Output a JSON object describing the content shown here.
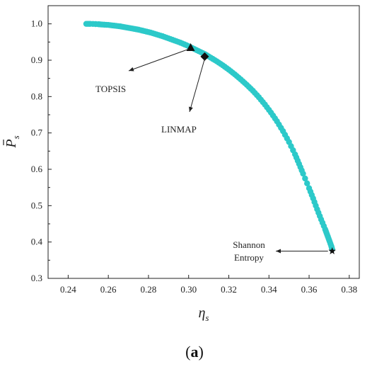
{
  "chart_data": {
    "type": "scatter",
    "xlabel": "η",
    "xlabel_sub": "s",
    "ylabel": "P",
    "ylabel_sub": "s",
    "xlim": [
      0.23,
      0.385
    ],
    "ylim": [
      0.3,
      1.05
    ],
    "xticks": [
      "0.24",
      "0.26",
      "0.28",
      "0.30",
      "0.32",
      "0.34",
      "0.36",
      "0.38"
    ],
    "yticks": [
      "0.3",
      "0.4",
      "0.5",
      "0.6",
      "0.7",
      "0.8",
      "0.9",
      "1.0"
    ],
    "grid": false,
    "series": [
      {
        "color": "#2cc9c9",
        "points": [
          [
            0.249,
            1.0
          ],
          [
            0.251,
            1.0
          ],
          [
            0.255,
            0.999
          ],
          [
            0.257,
            0.998
          ],
          [
            0.26,
            0.997
          ],
          [
            0.263,
            0.995
          ],
          [
            0.266,
            0.993
          ],
          [
            0.269,
            0.99
          ],
          [
            0.272,
            0.987
          ],
          [
            0.275,
            0.984
          ],
          [
            0.278,
            0.98
          ],
          [
            0.281,
            0.976
          ],
          [
            0.284,
            0.971
          ],
          [
            0.287,
            0.966
          ],
          [
            0.29,
            0.96
          ],
          [
            0.293,
            0.954
          ],
          [
            0.296,
            0.948
          ],
          [
            0.299,
            0.941
          ],
          [
            0.302,
            0.933
          ],
          [
            0.305,
            0.925
          ],
          [
            0.308,
            0.917
          ],
          [
            0.311,
            0.907
          ],
          [
            0.314,
            0.897
          ],
          [
            0.317,
            0.886
          ],
          [
            0.32,
            0.874
          ],
          [
            0.323,
            0.861
          ],
          [
            0.326,
            0.847
          ],
          [
            0.329,
            0.832
          ],
          [
            0.332,
            0.816
          ],
          [
            0.335,
            0.798
          ],
          [
            0.338,
            0.778
          ],
          [
            0.341,
            0.756
          ],
          [
            0.344,
            0.732
          ],
          [
            0.347,
            0.705
          ],
          [
            0.35,
            0.675
          ],
          [
            0.353,
            0.641
          ],
          [
            0.355,
            0.615
          ],
          [
            0.357,
            0.588
          ],
          [
            0.36,
            0.548
          ],
          [
            0.362,
            0.52
          ],
          [
            0.364,
            0.49
          ],
          [
            0.366,
            0.462
          ],
          [
            0.368,
            0.435
          ],
          [
            0.369,
            0.42
          ],
          [
            0.37,
            0.405
          ],
          [
            0.371,
            0.39
          ],
          [
            0.3715,
            0.38
          ]
        ]
      }
    ],
    "annotations": [
      {
        "label": "TOPSIS",
        "marker": "triangle",
        "x": 0.301,
        "y": 0.935
      },
      {
        "label": "LINMAP",
        "marker": "diamond",
        "x": 0.308,
        "y": 0.91
      },
      {
        "label": "Shannon\nEntropy",
        "marker": "star",
        "x": 0.3715,
        "y": 0.375
      }
    ]
  },
  "figure": {
    "panel_label": "a",
    "panel_open": "(",
    "panel_close": ")"
  },
  "colors": {
    "series": "#2cc9c9",
    "marker": "#111111",
    "axis": "#222222"
  }
}
